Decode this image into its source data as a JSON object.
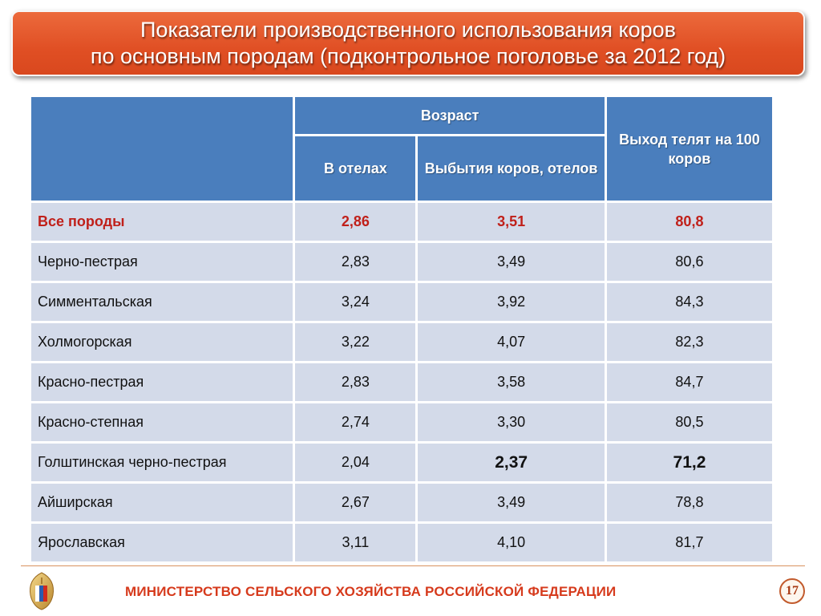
{
  "title": {
    "line1": "Показатели производственного использования коров",
    "line2": "по основным породам (подконтрольное поголовье за 2012 год)"
  },
  "table": {
    "header": {
      "age": "Возраст",
      "at_calving": "В отелах",
      "at_disposal": "Выбытия коров, отелов",
      "calf_yield": "Выход телят на 100 коров"
    },
    "rows": [
      {
        "breed": "Все породы",
        "calving": "2,86",
        "disposal": "3,51",
        "yield": "80,8"
      },
      {
        "breed": "Черно-пестрая",
        "calving": "2,83",
        "disposal": "3,49",
        "yield": "80,6"
      },
      {
        "breed": "Симментальская",
        "calving": "3,24",
        "disposal": "3,92",
        "yield": "84,3"
      },
      {
        "breed": "Холмогорская",
        "calving": "3,22",
        "disposal": "4,07",
        "yield": "82,3"
      },
      {
        "breed": "Красно-пестрая",
        "calving": "2,83",
        "disposal": "3,58",
        "yield": "84,7"
      },
      {
        "breed": "Красно-степная",
        "calving": "2,74",
        "disposal": "3,30",
        "yield": "80,5"
      },
      {
        "breed": "Голштинская черно-пестрая",
        "calving": "2,04",
        "disposal": "2,37",
        "yield": "71,2"
      },
      {
        "breed": "Айширская",
        "calving": "2,67",
        "disposal": "3,49",
        "yield": "78,8"
      },
      {
        "breed": "Ярославская",
        "calving": "3,11",
        "disposal": "4,10",
        "yield": "81,7"
      }
    ]
  },
  "footer": {
    "ministry": "МИНИСТЕРСТВО СЕЛЬСКОГО ХОЗЯЙСТВА РОССИЙСКОЙ ФЕДЕРАЦИИ",
    "page_number": "17",
    "logo_icon": "ministry-emblem-icon"
  },
  "colors": {
    "title_bg": "#e04f24",
    "header_bg": "#4a7ebd",
    "cell_bg": "#d3dae9",
    "highlight": "#c0201a"
  }
}
